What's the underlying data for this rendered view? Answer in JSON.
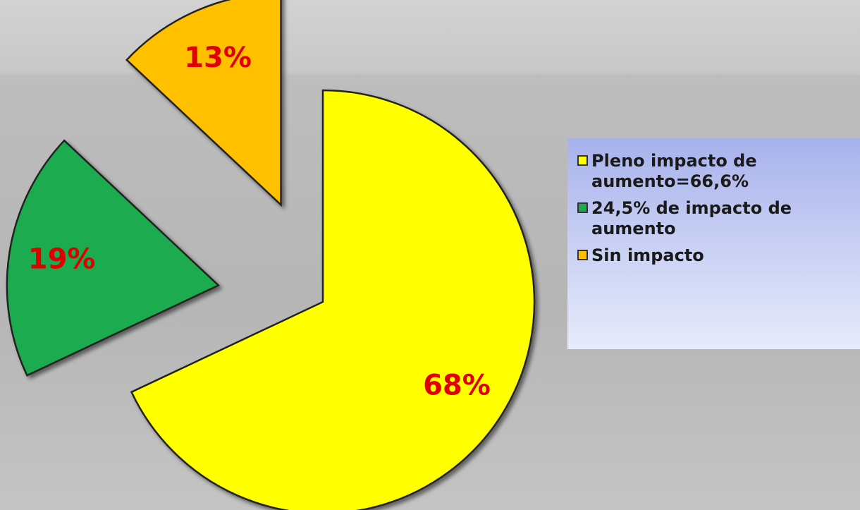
{
  "chart_data": {
    "type": "pie",
    "categories": [
      "Pleno impacto de aumento=66,6%",
      "24,5% de impacto de aumento",
      "Sin impacto"
    ],
    "values": [
      68,
      19,
      13
    ],
    "value_labels": [
      "68%",
      "19%",
      "13%"
    ],
    "colors": [
      "#ffff00",
      "#1aab4f",
      "#ffc000"
    ]
  }
}
